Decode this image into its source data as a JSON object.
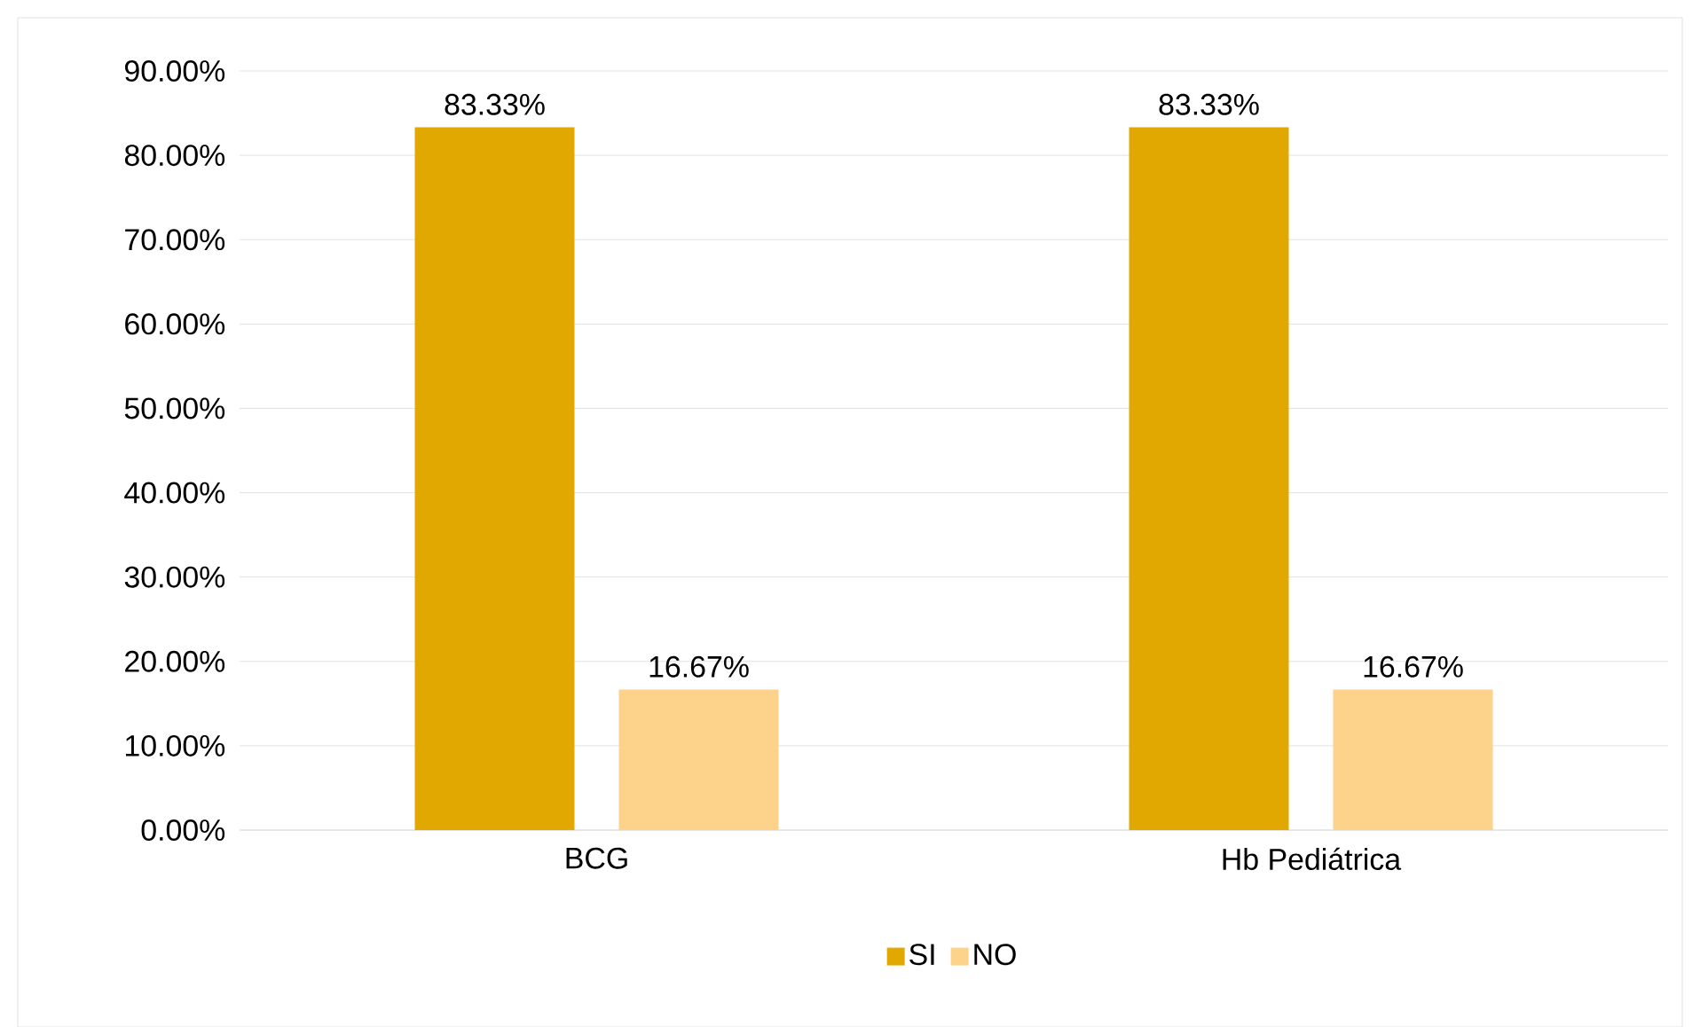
{
  "chart_data": {
    "type": "bar",
    "categories": [
      "BCG",
      "Hb Pediátrica"
    ],
    "series": [
      {
        "name": "SI",
        "color": "#e0a800",
        "values": [
          83.33,
          83.33
        ],
        "value_labels": [
          "83.33%",
          "83.33%"
        ]
      },
      {
        "name": "NO",
        "color": "#fdd28a",
        "values": [
          16.67,
          16.67
        ],
        "value_labels": [
          "16.67%",
          "16.67%"
        ]
      }
    ],
    "ylim": [
      0,
      90
    ],
    "yticks": [
      {
        "value": 0,
        "label": "0.00%"
      },
      {
        "value": 10,
        "label": "10.00%"
      },
      {
        "value": 20,
        "label": "20.00%"
      },
      {
        "value": 30,
        "label": "30.00%"
      },
      {
        "value": 40,
        "label": "40.00%"
      },
      {
        "value": 50,
        "label": "50.00%"
      },
      {
        "value": 60,
        "label": "60.00%"
      },
      {
        "value": 70,
        "label": "70.00%"
      },
      {
        "value": 80,
        "label": "80.00%"
      },
      {
        "value": 90,
        "label": "90.00%"
      }
    ],
    "grid": "y",
    "legend": "bottom"
  }
}
